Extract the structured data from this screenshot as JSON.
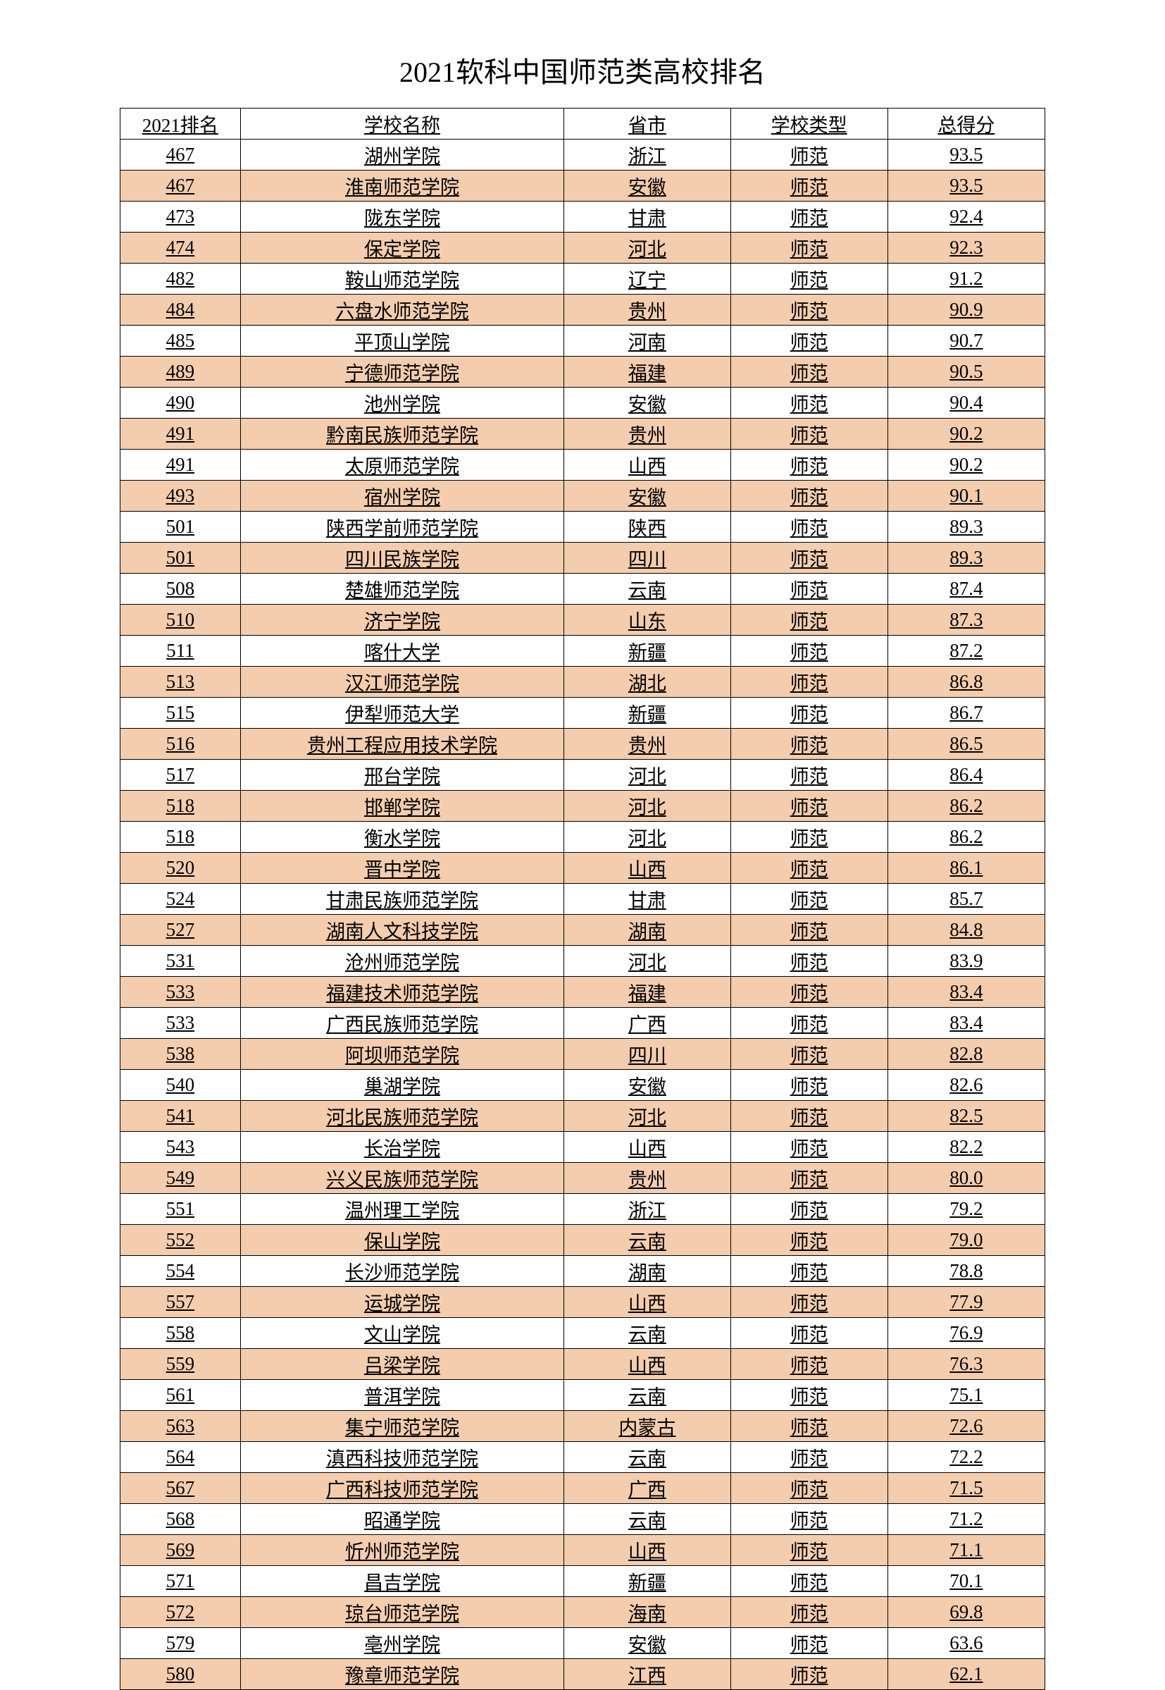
{
  "title": "2021软科中国师范类高校排名",
  "columns": [
    "2021排名",
    "学校名称",
    "省市",
    "学校类型",
    "总得分"
  ],
  "highlight_color": "#f4cdae",
  "normal_color": "#ffffff",
  "border_color": "#000000",
  "rows": [
    {
      "rank": "467",
      "name": "湖州学院",
      "province": "浙江",
      "type": "师范",
      "score": "93.5",
      "highlight": false
    },
    {
      "rank": "467",
      "name": "淮南师范学院",
      "province": "安徽",
      "type": "师范",
      "score": "93.5",
      "highlight": true
    },
    {
      "rank": "473",
      "name": "陇东学院",
      "province": "甘肃",
      "type": "师范",
      "score": "92.4",
      "highlight": false
    },
    {
      "rank": "474",
      "name": "保定学院",
      "province": "河北",
      "type": "师范",
      "score": "92.3",
      "highlight": true
    },
    {
      "rank": "482",
      "name": "鞍山师范学院",
      "province": "辽宁",
      "type": "师范",
      "score": "91.2",
      "highlight": false
    },
    {
      "rank": "484",
      "name": "六盘水师范学院",
      "province": "贵州",
      "type": "师范",
      "score": "90.9",
      "highlight": true
    },
    {
      "rank": "485",
      "name": "平顶山学院",
      "province": "河南",
      "type": "师范",
      "score": "90.7",
      "highlight": false
    },
    {
      "rank": "489",
      "name": "宁德师范学院",
      "province": "福建",
      "type": "师范",
      "score": "90.5",
      "highlight": true
    },
    {
      "rank": "490",
      "name": "池州学院",
      "province": "安徽",
      "type": "师范",
      "score": "90.4",
      "highlight": false
    },
    {
      "rank": "491",
      "name": "黔南民族师范学院",
      "province": "贵州",
      "type": "师范",
      "score": "90.2",
      "highlight": true
    },
    {
      "rank": "491",
      "name": "太原师范学院",
      "province": "山西",
      "type": "师范",
      "score": "90.2",
      "highlight": false
    },
    {
      "rank": "493",
      "name": "宿州学院",
      "province": "安徽",
      "type": "师范",
      "score": "90.1",
      "highlight": true
    },
    {
      "rank": "501",
      "name": "陕西学前师范学院",
      "province": "陕西",
      "type": "师范",
      "score": "89.3",
      "highlight": false
    },
    {
      "rank": "501",
      "name": "四川民族学院",
      "province": "四川",
      "type": "师范",
      "score": "89.3",
      "highlight": true
    },
    {
      "rank": "508",
      "name": "楚雄师范学院",
      "province": "云南",
      "type": "师范",
      "score": "87.4",
      "highlight": false
    },
    {
      "rank": "510",
      "name": "济宁学院",
      "province": "山东",
      "type": "师范",
      "score": "87.3",
      "highlight": true
    },
    {
      "rank": "511",
      "name": "喀什大学",
      "province": "新疆",
      "type": "师范",
      "score": "87.2",
      "highlight": false
    },
    {
      "rank": "513",
      "name": "汉江师范学院",
      "province": "湖北",
      "type": "师范",
      "score": "86.8",
      "highlight": true
    },
    {
      "rank": "515",
      "name": "伊犁师范大学",
      "province": "新疆",
      "type": "师范",
      "score": "86.7",
      "highlight": false
    },
    {
      "rank": "516",
      "name": "贵州工程应用技术学院",
      "province": "贵州",
      "type": "师范",
      "score": "86.5",
      "highlight": true
    },
    {
      "rank": "517",
      "name": "邢台学院",
      "province": "河北",
      "type": "师范",
      "score": "86.4",
      "highlight": false
    },
    {
      "rank": "518",
      "name": "邯郸学院",
      "province": "河北",
      "type": "师范",
      "score": "86.2",
      "highlight": true
    },
    {
      "rank": "518",
      "name": "衡水学院",
      "province": "河北",
      "type": "师范",
      "score": "86.2",
      "highlight": false
    },
    {
      "rank": "520",
      "name": "晋中学院",
      "province": "山西",
      "type": "师范",
      "score": "86.1",
      "highlight": true
    },
    {
      "rank": "524",
      "name": "甘肃民族师范学院",
      "province": "甘肃",
      "type": "师范",
      "score": "85.7",
      "highlight": false
    },
    {
      "rank": "527",
      "name": "湖南人文科技学院",
      "province": "湖南",
      "type": "师范",
      "score": "84.8",
      "highlight": true
    },
    {
      "rank": "531",
      "name": "沧州师范学院",
      "province": "河北",
      "type": "师范",
      "score": "83.9",
      "highlight": false
    },
    {
      "rank": "533",
      "name": "福建技术师范学院",
      "province": "福建",
      "type": "师范",
      "score": "83.4",
      "highlight": true
    },
    {
      "rank": "533",
      "name": "广西民族师范学院",
      "province": "广西",
      "type": "师范",
      "score": "83.4",
      "highlight": false
    },
    {
      "rank": "538",
      "name": "阿坝师范学院",
      "province": "四川",
      "type": "师范",
      "score": "82.8",
      "highlight": true
    },
    {
      "rank": "540",
      "name": "巢湖学院",
      "province": "安徽",
      "type": "师范",
      "score": "82.6",
      "highlight": false
    },
    {
      "rank": "541",
      "name": "河北民族师范学院",
      "province": "河北",
      "type": "师范",
      "score": "82.5",
      "highlight": true
    },
    {
      "rank": "543",
      "name": "长治学院",
      "province": "山西",
      "type": "师范",
      "score": "82.2",
      "highlight": false
    },
    {
      "rank": "549",
      "name": "兴义民族师范学院",
      "province": "贵州",
      "type": "师范",
      "score": "80.0",
      "highlight": true
    },
    {
      "rank": "551",
      "name": "温州理工学院",
      "province": "浙江",
      "type": "师范",
      "score": "79.2",
      "highlight": false
    },
    {
      "rank": "552",
      "name": "保山学院",
      "province": "云南",
      "type": "师范",
      "score": "79.0",
      "highlight": true
    },
    {
      "rank": "554",
      "name": "长沙师范学院",
      "province": "湖南",
      "type": "师范",
      "score": "78.8",
      "highlight": false
    },
    {
      "rank": "557",
      "name": "运城学院",
      "province": "山西",
      "type": "师范",
      "score": "77.9",
      "highlight": true
    },
    {
      "rank": "558",
      "name": "文山学院",
      "province": "云南",
      "type": "师范",
      "score": "76.9",
      "highlight": false
    },
    {
      "rank": "559",
      "name": "吕梁学院",
      "province": "山西",
      "type": "师范",
      "score": "76.3",
      "highlight": true
    },
    {
      "rank": "561",
      "name": "普洱学院",
      "province": "云南",
      "type": "师范",
      "score": "75.1",
      "highlight": false
    },
    {
      "rank": "563",
      "name": "集宁师范学院",
      "province": "内蒙古",
      "type": "师范",
      "score": "72.6",
      "highlight": true
    },
    {
      "rank": "564",
      "name": "滇西科技师范学院",
      "province": "云南",
      "type": "师范",
      "score": "72.2",
      "highlight": false
    },
    {
      "rank": "567",
      "name": "广西科技师范学院",
      "province": "广西",
      "type": "师范",
      "score": "71.5",
      "highlight": true
    },
    {
      "rank": "568",
      "name": "昭通学院",
      "province": "云南",
      "type": "师范",
      "score": "71.2",
      "highlight": false
    },
    {
      "rank": "569",
      "name": "忻州师范学院",
      "province": "山西",
      "type": "师范",
      "score": "71.1",
      "highlight": true
    },
    {
      "rank": "571",
      "name": "昌吉学院",
      "province": "新疆",
      "type": "师范",
      "score": "70.1",
      "highlight": false
    },
    {
      "rank": "572",
      "name": "琼台师范学院",
      "province": "海南",
      "type": "师范",
      "score": "69.8",
      "highlight": true
    },
    {
      "rank": "579",
      "name": "亳州学院",
      "province": "安徽",
      "type": "师范",
      "score": "63.6",
      "highlight": false
    },
    {
      "rank": "580",
      "name": "豫章师范学院",
      "province": "江西",
      "type": "师范",
      "score": "62.1",
      "highlight": true
    }
  ]
}
